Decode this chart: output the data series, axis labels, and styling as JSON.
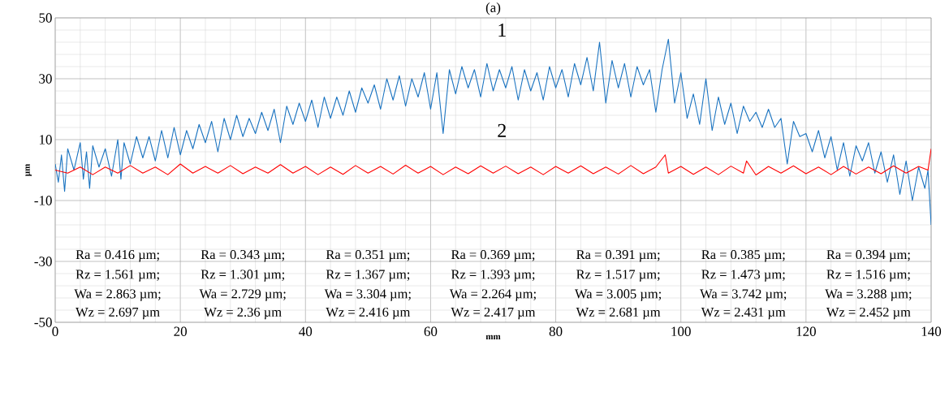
{
  "chart_data": {
    "type": "line",
    "title": "(a)",
    "xlabel": "mm",
    "ylabel": "µm",
    "xlim": [
      0,
      140
    ],
    "ylim": [
      -50,
      50
    ],
    "xticks": [
      0,
      20,
      40,
      60,
      80,
      100,
      120,
      140
    ],
    "yticks": [
      -50,
      -30,
      -10,
      10,
      30,
      50
    ],
    "grid": true,
    "line_style": "solid",
    "marker": "none",
    "series": [
      {
        "name": "1",
        "color": "#1a73c0",
        "x": [
          0,
          0.5,
          1,
          1.5,
          2,
          3,
          4,
          4.5,
          5,
          5.5,
          6,
          7,
          8,
          9,
          10,
          10.5,
          11,
          12,
          13,
          14,
          15,
          16,
          17,
          18,
          19,
          20,
          21,
          22,
          23,
          24,
          25,
          26,
          27,
          28,
          29,
          30,
          31,
          32,
          33,
          34,
          35,
          36,
          37,
          38,
          39,
          40,
          41,
          42,
          43,
          44,
          45,
          46,
          47,
          48,
          49,
          50,
          51,
          52,
          53,
          54,
          55,
          56,
          57,
          58,
          59,
          60,
          61,
          62,
          63,
          64,
          65,
          66,
          67,
          68,
          69,
          70,
          71,
          72,
          73,
          74,
          75,
          76,
          77,
          78,
          79,
          80,
          81,
          82,
          83,
          84,
          85,
          86,
          87,
          88,
          89,
          90,
          91,
          92,
          93,
          94,
          95,
          96,
          97,
          98,
          99,
          100,
          101,
          102,
          103,
          104,
          105,
          106,
          107,
          108,
          109,
          110,
          111,
          112,
          113,
          114,
          115,
          116,
          117,
          118,
          119,
          120,
          121,
          122,
          123,
          124,
          125,
          126,
          127,
          128,
          129,
          130,
          131,
          132,
          133,
          134,
          135,
          136,
          137,
          138,
          139,
          139.5,
          140
        ],
        "values": [
          2,
          -4,
          5,
          -7,
          7,
          0,
          9,
          -3,
          6,
          -6,
          8,
          1,
          7,
          -2,
          10,
          -3,
          9,
          2,
          11,
          4,
          11,
          3,
          13,
          4,
          14,
          5,
          13,
          7,
          15,
          9,
          16,
          6,
          17,
          10,
          18,
          11,
          17,
          12,
          19,
          13,
          20,
          9,
          21,
          15,
          22,
          16,
          23,
          14,
          24,
          17,
          24,
          18,
          26,
          19,
          27,
          22,
          28,
          20,
          30,
          23,
          31,
          21,
          30,
          24,
          32,
          20,
          32,
          12,
          33,
          25,
          34,
          27,
          33,
          24,
          35,
          26,
          33,
          27,
          34,
          23,
          33,
          26,
          32,
          23,
          34,
          27,
          33,
          24,
          35,
          28,
          37,
          26,
          42,
          22,
          36,
          27,
          35,
          24,
          34,
          28,
          33,
          19,
          33,
          43,
          22,
          32,
          17,
          25,
          15,
          30,
          13,
          24,
          15,
          22,
          12,
          21,
          16,
          19,
          14,
          20,
          14,
          17,
          2,
          16,
          11,
          12,
          6,
          13,
          4,
          11,
          0,
          9,
          -2,
          8,
          3,
          9,
          -1,
          6,
          -4,
          5,
          -8,
          3,
          -10,
          1,
          -6,
          0,
          -18
        ]
      },
      {
        "name": "2",
        "color": "#ff0000",
        "x": [
          0,
          2,
          4,
          6,
          8,
          10,
          12,
          14,
          16,
          18,
          20,
          22,
          24,
          26,
          28,
          30,
          32,
          34,
          36,
          38,
          40,
          42,
          44,
          46,
          48,
          50,
          52,
          54,
          56,
          58,
          60,
          62,
          64,
          66,
          68,
          70,
          72,
          74,
          76,
          78,
          80,
          82,
          84,
          86,
          88,
          90,
          92,
          94,
          96,
          97.5,
          98,
          100,
          102,
          104,
          106,
          108,
          110,
          110.5,
          112,
          114,
          116,
          118,
          120,
          122,
          124,
          126,
          128,
          130,
          132,
          134,
          136,
          138,
          139.5,
          140
        ],
        "values": [
          0,
          -1,
          1,
          -1.5,
          1,
          -1,
          1.5,
          -1,
          1,
          -1.5,
          2,
          -1,
          1.2,
          -1,
          1.5,
          -1.2,
          1,
          -1,
          1.8,
          -1,
          1.2,
          -1.5,
          1,
          -1.4,
          1.5,
          -1,
          1.2,
          -1.3,
          1.6,
          -1,
          1.2,
          -1.5,
          1,
          -1.2,
          1.4,
          -1,
          1.3,
          -1.2,
          1,
          -1.5,
          1.2,
          -1,
          1.4,
          -1.2,
          1,
          -1.3,
          1.5,
          -1.2,
          1,
          5,
          -1,
          1.2,
          -1.4,
          1,
          -1.5,
          1.3,
          -1,
          3,
          -1.6,
          1.2,
          -1,
          1.4,
          -1.2,
          1,
          -1.5,
          1.2,
          -1.3,
          1,
          -1.2,
          1.4,
          -1,
          1.2,
          0,
          7
        ]
      }
    ],
    "annotations": [
      "Ra = 0.416 µm;",
      "Rz = 1.561 µm;",
      "Wa = 2.863 µm;",
      "Wz = 2.697 µm",
      "Ra = 0.343 µm;",
      "Rz = 1.301 µm;",
      "Wa = 2.729 µm;",
      "Wz = 2.36 µm",
      "Ra = 0.351 µm;",
      "Rz = 1.367 µm;",
      "Wa = 3.304 µm;",
      "Wz = 2.416 µm",
      "Ra = 0.369 µm;",
      "Rz = 1.393 µm;",
      "Wa = 2.264 µm;",
      "Wz = 2.417 µm",
      "Ra = 0.391 µm;",
      "Rz = 1.517 µm;",
      "Wa = 3.005 µm;",
      "Wz = 2.681 µm",
      "Ra = 0.385 µm;",
      "Rz = 1.473 µm;",
      "Wa = 3.742 µm;",
      "Wz = 2.431 µm",
      "Ra = 0.394 µm;",
      "Rz = 1.516 µm;",
      "Wa = 3.288 µm;",
      "Wz = 2.452 µm"
    ]
  }
}
